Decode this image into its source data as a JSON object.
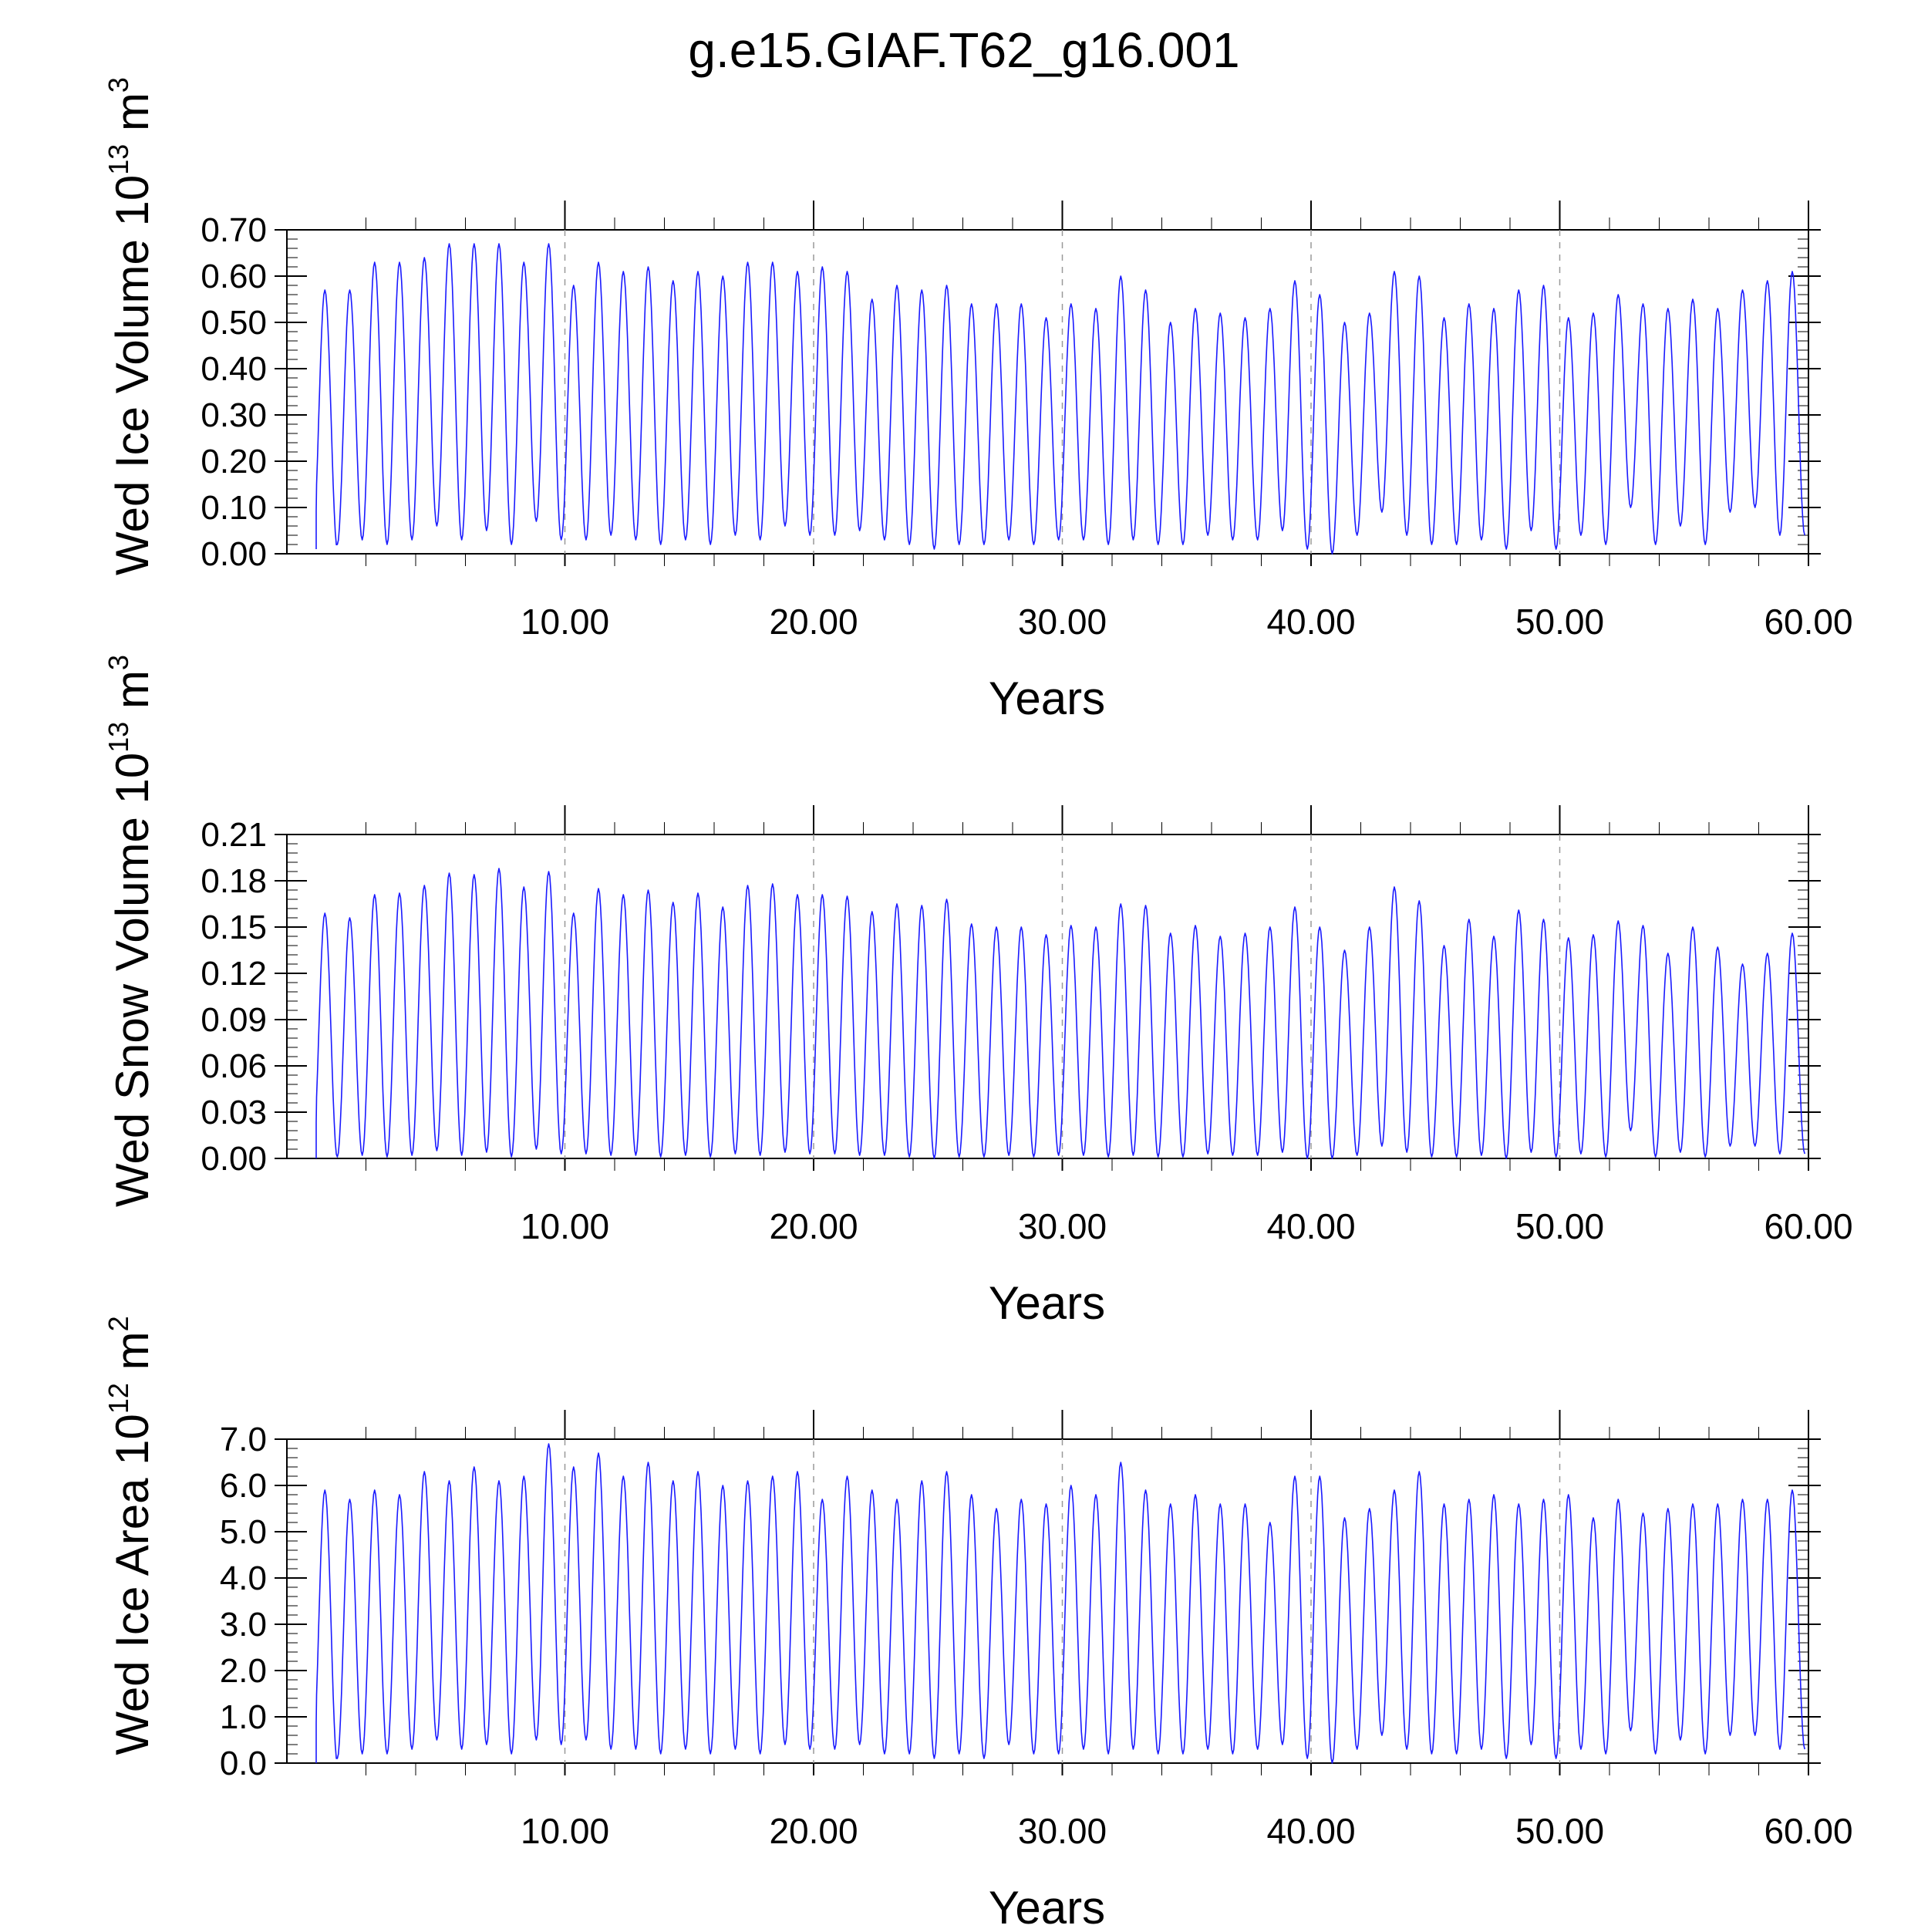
{
  "figure": {
    "title": "g.e15.GIAF.T62_g16.001"
  },
  "style": {
    "series_color": "#1a1aff",
    "axis_color": "#000000",
    "refline_color": "#999999"
  },
  "chart_data": [
    {
      "type": "line",
      "title": "",
      "ylabel_main": "Wed Ice Volume 10",
      "ylabel_sup": "13",
      "ylabel_unit": " m",
      "ylabel_unit_sup": "3",
      "xlabel": "Years",
      "xlim": [
        0,
        60
      ],
      "ylim": [
        0,
        0.7
      ],
      "yticks": [
        0,
        0.1,
        0.2,
        0.3,
        0.4,
        0.5,
        0.6,
        0.7
      ],
      "ytick_labels": [
        "0.00",
        "0.10",
        "0.20",
        "0.30",
        "0.40",
        "0.50",
        "0.60",
        "0.70"
      ],
      "xticks": [
        10,
        20,
        30,
        40,
        50,
        60
      ],
      "xtick_labels": [
        "10.00",
        "20.00",
        "30.00",
        "40.00",
        "50.00",
        "60.00"
      ],
      "reference_lines_x": [
        10,
        20,
        30,
        40,
        50
      ],
      "series": [
        {
          "maxima": [
            0.57,
            0.57,
            0.63,
            0.63,
            0.64,
            0.67,
            0.67,
            0.67,
            0.63,
            0.67,
            0.58,
            0.63,
            0.61,
            0.62,
            0.59,
            0.61,
            0.6,
            0.63,
            0.63,
            0.61,
            0.62,
            0.61,
            0.55,
            0.58,
            0.57,
            0.58,
            0.54,
            0.54,
            0.54,
            0.51,
            0.54,
            0.53,
            0.6,
            0.57,
            0.5,
            0.53,
            0.52,
            0.51,
            0.53,
            0.59,
            0.56,
            0.5,
            0.52,
            0.61,
            0.6,
            0.51,
            0.54,
            0.53,
            0.57,
            0.58,
            0.51,
            0.52,
            0.56,
            0.54,
            0.53,
            0.55,
            0.53,
            0.57,
            0.59,
            0.61
          ],
          "minima": [
            0.01,
            0.02,
            0.03,
            0.02,
            0.03,
            0.06,
            0.03,
            0.05,
            0.02,
            0.07,
            0.03,
            0.03,
            0.04,
            0.03,
            0.02,
            0.03,
            0.02,
            0.04,
            0.03,
            0.06,
            0.04,
            0.04,
            0.05,
            0.03,
            0.02,
            0.01,
            0.02,
            0.02,
            0.03,
            0.02,
            0.03,
            0.03,
            0.02,
            0.03,
            0.02,
            0.02,
            0.04,
            0.03,
            0.03,
            0.05,
            0.01,
            0.0,
            0.04,
            0.09,
            0.04,
            0.02,
            0.02,
            0.03,
            0.01,
            0.05,
            0.01,
            0.04,
            0.02,
            0.1,
            0.02,
            0.06,
            0.02,
            0.09,
            0.1,
            0.04
          ]
        }
      ]
    },
    {
      "type": "line",
      "title": "",
      "ylabel_main": "Wed Snow Volume 10",
      "ylabel_sup": "13",
      "ylabel_unit": " m",
      "ylabel_unit_sup": "3",
      "xlabel": "Years",
      "xlim": [
        0,
        60
      ],
      "ylim": [
        0,
        0.21
      ],
      "yticks": [
        0,
        0.03,
        0.06,
        0.09,
        0.12,
        0.15,
        0.18,
        0.21
      ],
      "ytick_labels": [
        "0.00",
        "0.03",
        "0.06",
        "0.09",
        "0.12",
        "0.15",
        "0.18",
        "0.21"
      ],
      "xticks": [
        10,
        20,
        30,
        40,
        50,
        60
      ],
      "xtick_labels": [
        "10.00",
        "20.00",
        "30.00",
        "40.00",
        "50.00",
        "60.00"
      ],
      "reference_lines_x": [
        10,
        20,
        30,
        40,
        50
      ],
      "series": [
        {
          "maxima": [
            0.159,
            0.156,
            0.171,
            0.172,
            0.177,
            0.185,
            0.184,
            0.188,
            0.176,
            0.186,
            0.159,
            0.175,
            0.171,
            0.174,
            0.166,
            0.172,
            0.163,
            0.177,
            0.178,
            0.171,
            0.171,
            0.17,
            0.16,
            0.165,
            0.164,
            0.168,
            0.152,
            0.15,
            0.15,
            0.145,
            0.151,
            0.15,
            0.165,
            0.164,
            0.146,
            0.151,
            0.144,
            0.146,
            0.15,
            0.163,
            0.15,
            0.135,
            0.15,
            0.176,
            0.167,
            0.138,
            0.155,
            0.144,
            0.161,
            0.155,
            0.143,
            0.145,
            0.154,
            0.151,
            0.133,
            0.15,
            0.137,
            0.126,
            0.133,
            0.146
          ],
          "minima": [
            0.0,
            0.001,
            0.002,
            0.001,
            0.002,
            0.005,
            0.002,
            0.004,
            0.001,
            0.006,
            0.003,
            0.003,
            0.002,
            0.002,
            0.001,
            0.002,
            0.001,
            0.003,
            0.002,
            0.004,
            0.003,
            0.003,
            0.002,
            0.002,
            0.001,
            0.0,
            0.001,
            0.001,
            0.002,
            0.001,
            0.002,
            0.002,
            0.001,
            0.002,
            0.001,
            0.001,
            0.003,
            0.002,
            0.002,
            0.004,
            0.0,
            0.0,
            0.002,
            0.008,
            0.004,
            0.001,
            0.001,
            0.002,
            0.0,
            0.004,
            0.001,
            0.003,
            0.001,
            0.018,
            0.001,
            0.004,
            0.001,
            0.008,
            0.008,
            0.003
          ]
        }
      ]
    },
    {
      "type": "line",
      "title": "",
      "ylabel_main": "Wed Ice Area 10",
      "ylabel_sup": "12",
      "ylabel_unit": " m",
      "ylabel_unit_sup": "2",
      "xlabel": "Years",
      "xlim": [
        0,
        60
      ],
      "ylim": [
        0,
        7.0
      ],
      "yticks": [
        0,
        1,
        2,
        3,
        4,
        5,
        6,
        7
      ],
      "ytick_labels": [
        "0.0",
        "1.0",
        "2.0",
        "3.0",
        "4.0",
        "5.0",
        "6.0",
        "7.0"
      ],
      "xticks": [
        10,
        20,
        30,
        40,
        50,
        60
      ],
      "xtick_labels": [
        "10.00",
        "20.00",
        "30.00",
        "40.00",
        "50.00",
        "60.00"
      ],
      "reference_lines_x": [
        10,
        20,
        30,
        40,
        50
      ],
      "series": [
        {
          "maxima": [
            5.9,
            5.7,
            5.9,
            5.8,
            6.3,
            6.1,
            6.4,
            6.1,
            6.2,
            6.9,
            6.4,
            6.7,
            6.2,
            6.5,
            6.1,
            6.3,
            6.0,
            6.1,
            6.2,
            6.3,
            5.7,
            6.2,
            5.9,
            5.7,
            6.1,
            6.3,
            5.8,
            5.5,
            5.7,
            5.6,
            6.0,
            5.8,
            6.5,
            5.9,
            5.6,
            5.8,
            5.6,
            5.6,
            5.2,
            6.2,
            6.2,
            5.3,
            5.5,
            5.9,
            6.3,
            5.6,
            5.7,
            5.8,
            5.6,
            5.7,
            5.8,
            5.3,
            5.7,
            5.4,
            5.5,
            5.6,
            5.6,
            5.7,
            5.7,
            5.9
          ],
          "minima": [
            0.0,
            0.1,
            0.2,
            0.2,
            0.3,
            0.5,
            0.3,
            0.4,
            0.2,
            0.5,
            0.4,
            0.5,
            0.3,
            0.3,
            0.2,
            0.3,
            0.2,
            0.3,
            0.2,
            0.4,
            0.3,
            0.3,
            0.4,
            0.2,
            0.2,
            0.1,
            0.2,
            0.1,
            0.4,
            0.2,
            0.2,
            0.3,
            0.2,
            0.3,
            0.2,
            0.2,
            0.3,
            0.2,
            0.3,
            0.4,
            0.1,
            0.0,
            0.3,
            0.6,
            0.3,
            0.2,
            0.2,
            0.3,
            0.1,
            0.4,
            0.1,
            0.3,
            0.2,
            0.7,
            0.2,
            0.5,
            0.2,
            0.6,
            0.6,
            0.3
          ]
        }
      ]
    }
  ]
}
